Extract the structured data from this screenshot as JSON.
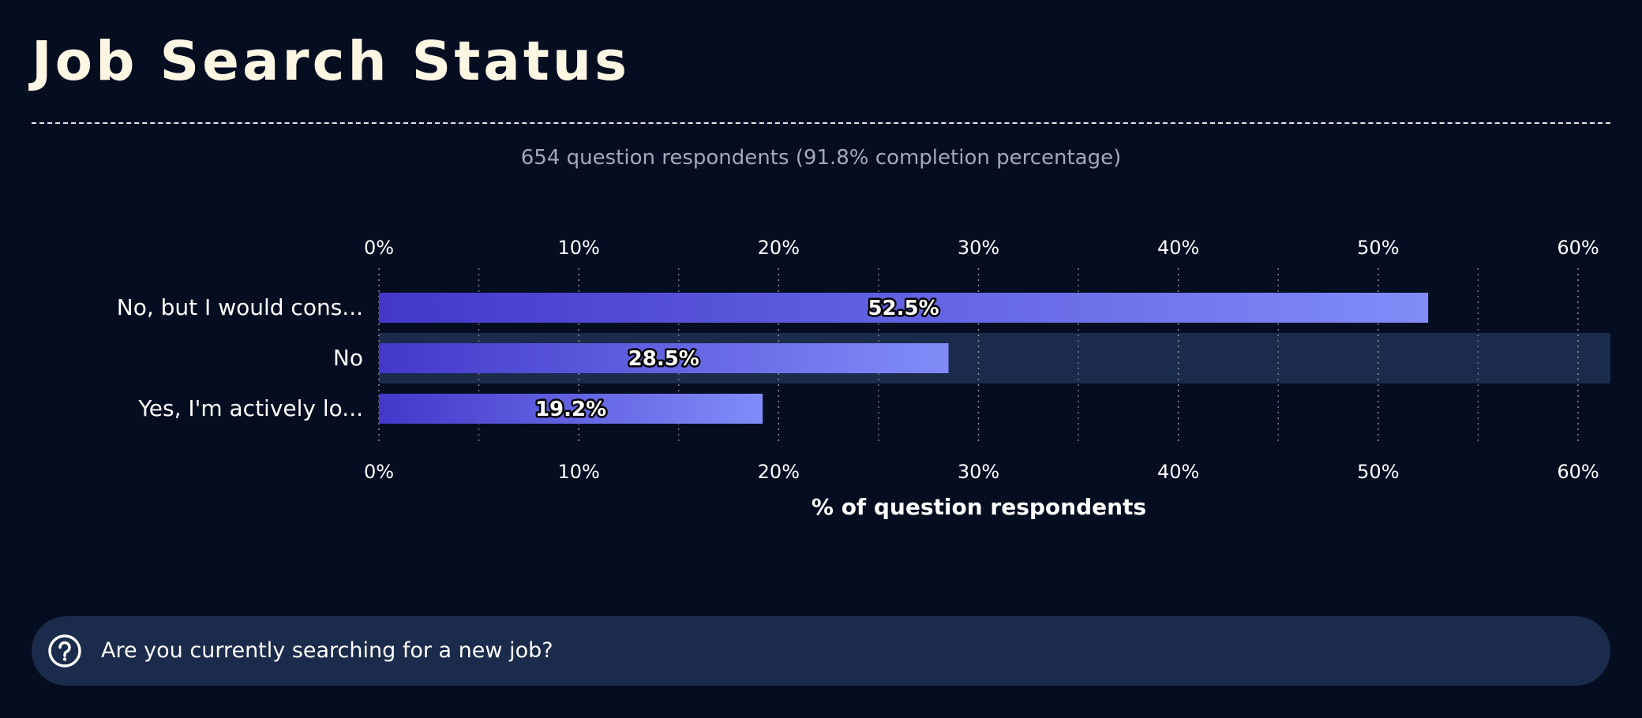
{
  "header": {
    "title": "Job Search Status",
    "subtitle": "654 question respondents (91.8% completion percentage)"
  },
  "question": {
    "icon": "question-circle-icon",
    "text": "Are you currently searching for a new job?"
  },
  "colors": {
    "background": "#050d21",
    "bar_start": "#4338ca",
    "bar_end": "#818cf8",
    "highlight_band": "#1b2b4b",
    "title": "#fdf6e3",
    "subtitle": "#a4a9b5"
  },
  "chart_data": {
    "type": "bar",
    "orientation": "horizontal",
    "categories": [
      "No, but I would cons...",
      "No",
      "Yes, I'm actively lo..."
    ],
    "values": [
      52.5,
      28.5,
      19.2
    ],
    "data_labels": [
      "52.5%",
      "28.5%",
      "19.2%"
    ],
    "xlabel": "% of question respondents",
    "ylabel": "",
    "xlim": [
      0,
      62
    ],
    "xticks": [
      0,
      10,
      20,
      30,
      40,
      50,
      60
    ],
    "xtick_labels": [
      "0%",
      "10%",
      "20%",
      "30%",
      "40%",
      "50%",
      "60%"
    ],
    "minor_gridlines": [
      5,
      15,
      25,
      35,
      45,
      55
    ],
    "grid": true,
    "axis_labels_top_and_bottom": true,
    "highlighted_category": "No"
  }
}
